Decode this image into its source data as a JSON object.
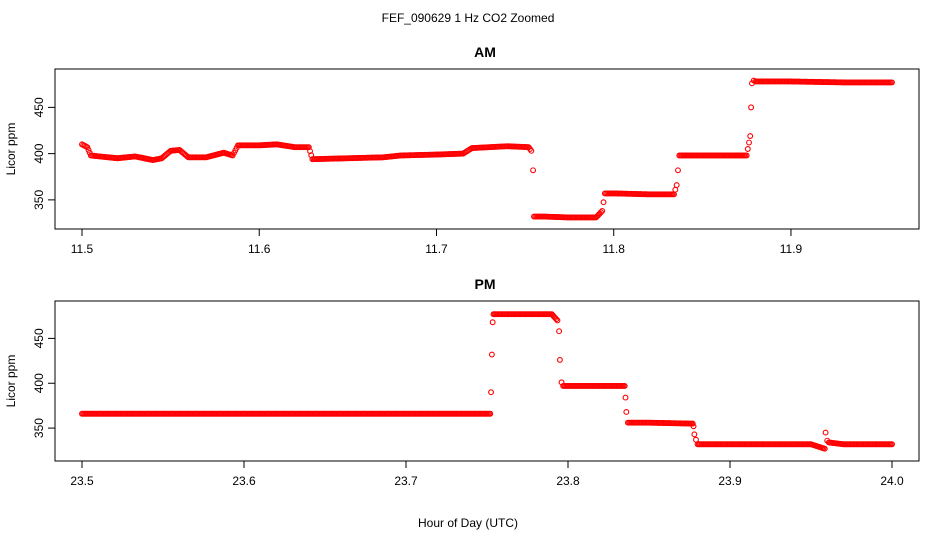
{
  "figure": {
    "title": "FEF_090629  1 Hz CO2 Zoomed",
    "xlabel": "Hour of Day (UTC)",
    "marker_color": "#ff0000"
  },
  "chart_data": [
    {
      "type": "scatter",
      "title": "AM",
      "ylabel": "Licor ppm",
      "xlim": [
        11.5,
        11.957
      ],
      "ylim": [
        325,
        485
      ],
      "xticks": [
        11.5,
        11.6,
        11.7,
        11.8,
        11.9
      ],
      "xtick_labels": [
        "11.5",
        "11.6",
        "11.7",
        "11.8",
        "11.9"
      ],
      "yticks": [
        350,
        400,
        450
      ],
      "ytick_labels": [
        "350",
        "400",
        "450"
      ],
      "grid": false,
      "series": [
        {
          "x": [
            11.5,
            11.503,
            11.505,
            11.51,
            11.52,
            11.53,
            11.54,
            11.545,
            11.55,
            11.555,
            11.56,
            11.57,
            11.58,
            11.585,
            11.588,
            11.6,
            11.61,
            11.62,
            11.628,
            11.63,
            11.65,
            11.67,
            11.68,
            11.7,
            11.715,
            11.72,
            11.74,
            11.752,
            11.7535,
            11.7545,
            11.755,
            11.76,
            11.775,
            11.79,
            11.7935,
            11.795,
            11.8,
            11.82,
            11.834,
            11.8355,
            11.837,
            11.85,
            11.87,
            11.875,
            11.877,
            11.8775,
            11.878,
            11.879,
            11.88,
            11.9,
            11.93,
            11.957
          ],
          "y": [
            410,
            407,
            398,
            397,
            395,
            397,
            393,
            395,
            403,
            404,
            396,
            396,
            401,
            398,
            409,
            409,
            410,
            407,
            407,
            394,
            395,
            396,
            398,
            399,
            400,
            406,
            408,
            407,
            403,
            382,
            332,
            332,
            331,
            331,
            338,
            357,
            357,
            356,
            356,
            366,
            398,
            398,
            398,
            398,
            419,
            450,
            476,
            479,
            478,
            478,
            477,
            477
          ]
        }
      ]
    },
    {
      "type": "scatter",
      "title": "PM",
      "ylabel": "Licor ppm",
      "xlim": [
        23.5,
        24.0
      ],
      "ylim": [
        320,
        485
      ],
      "xticks": [
        23.5,
        23.6,
        23.7,
        23.8,
        23.9,
        24.0
      ],
      "xtick_labels": [
        "23.5",
        "23.6",
        "23.7",
        "23.8",
        "23.9",
        "24.0"
      ],
      "yticks": [
        350,
        400,
        450
      ],
      "ytick_labels": [
        "350",
        "400",
        "450"
      ],
      "grid": false,
      "series": [
        {
          "x": [
            23.5,
            23.6,
            23.7,
            23.752,
            23.7525,
            23.753,
            23.7535,
            23.754,
            23.756,
            23.77,
            23.79,
            23.7935,
            23.7945,
            23.795,
            23.796,
            23.797,
            23.81,
            23.835,
            23.8355,
            23.836,
            23.837,
            23.85,
            23.877,
            23.8775,
            23.878,
            23.879,
            23.88,
            23.92,
            23.95,
            23.9585,
            23.959,
            23.96,
            23.961,
            23.97,
            24.0
          ],
          "y": [
            366,
            366,
            366,
            366,
            390,
            432,
            468,
            477,
            477,
            477,
            477,
            470,
            458,
            426,
            401,
            397,
            397,
            397,
            384,
            368,
            356,
            356,
            355,
            352,
            343,
            337,
            332,
            332,
            332,
            327,
            345,
            336,
            334,
            332,
            332
          ]
        }
      ]
    }
  ]
}
